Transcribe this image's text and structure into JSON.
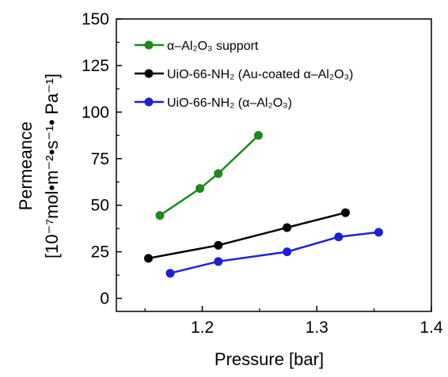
{
  "chart_data": {
    "type": "line",
    "xlabel": "Pressure [bar]",
    "ylabel_line1": "Permeance",
    "ylabel_line2": "[10⁻⁷mol•m⁻²•s⁻¹• Pa⁻¹]",
    "xlim": [
      1.125,
      1.4
    ],
    "ylim": [
      -7,
      150
    ],
    "xticks": [
      1.2,
      1.3,
      1.4
    ],
    "xtick_labels": [
      "1.2",
      "1.3",
      "1.4"
    ],
    "yticks": [
      0,
      25,
      50,
      75,
      100,
      125,
      150
    ],
    "ytick_labels": [
      "0",
      "25",
      "50",
      "75",
      "100",
      "125",
      "150"
    ],
    "grid": false,
    "legend_position": "top-left",
    "series": [
      {
        "name": "α–Al₂O₃ support",
        "color": "#1a8a1a",
        "x": [
          1.163,
          1.198,
          1.214,
          1.249
        ],
        "y": [
          44.5,
          59,
          67,
          87.5
        ]
      },
      {
        "name": "UiO-66-NH₂ (Au-coated α–Al₂O₃)",
        "color": "#000000",
        "x": [
          1.153,
          1.214,
          1.274,
          1.325
        ],
        "y": [
          21.5,
          28.5,
          38,
          46
        ]
      },
      {
        "name": "UiO-66-NH₂ (α–Al₂O₃)",
        "color": "#1f1fd6",
        "x": [
          1.172,
          1.214,
          1.274,
          1.319,
          1.354
        ],
        "y": [
          13.5,
          19.8,
          25,
          33,
          35.5
        ]
      }
    ]
  }
}
